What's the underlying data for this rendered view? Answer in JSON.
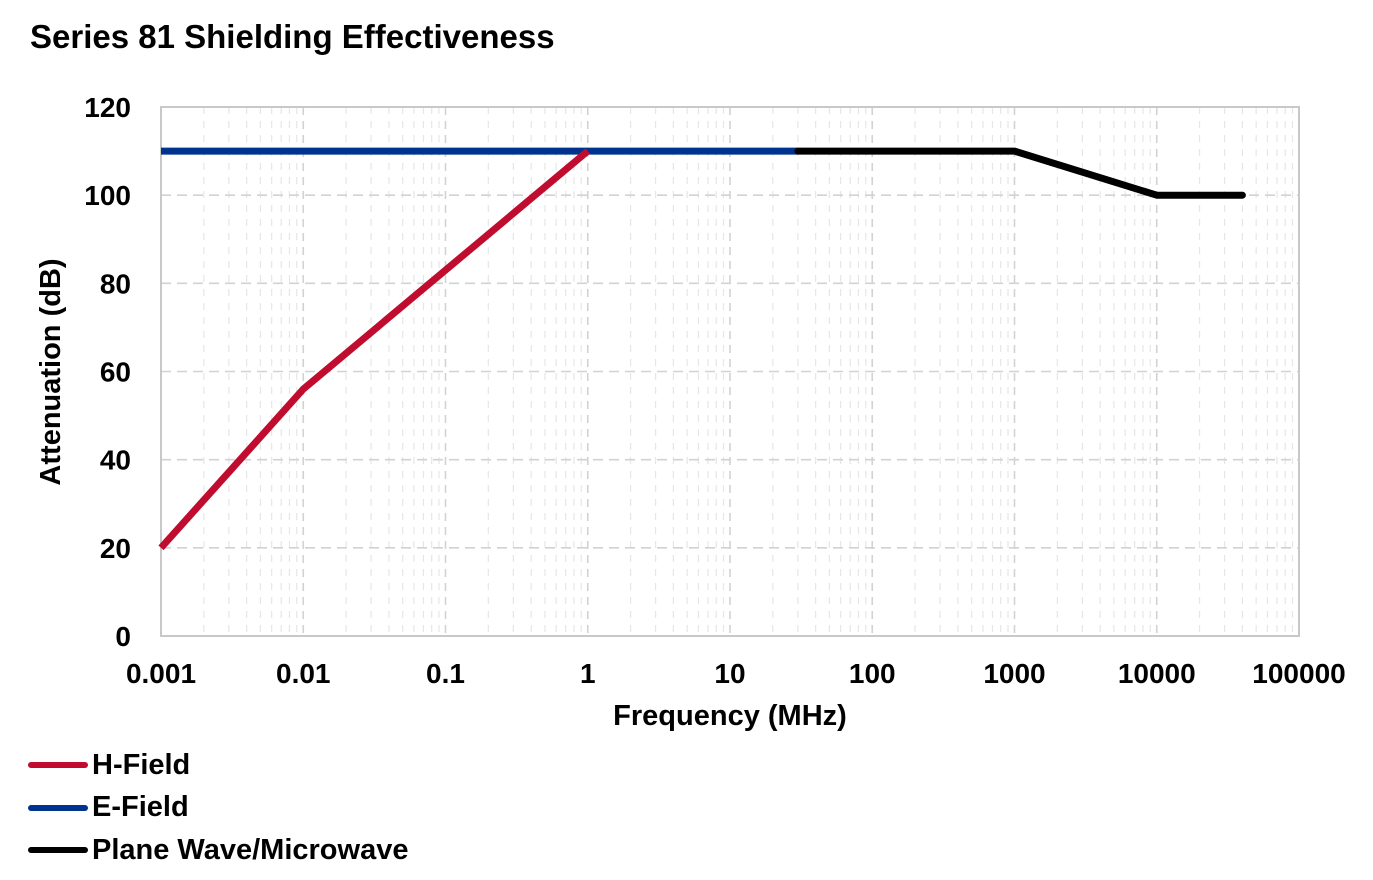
{
  "chart_data": {
    "type": "line",
    "title": "Series 81 Shielding Effectiveness",
    "xlabel": "Frequency (MHz)",
    "ylabel": "Attenuation (dB)",
    "xscale": "log",
    "xlim": [
      0.001,
      100000
    ],
    "ylim": [
      0,
      120
    ],
    "x_ticks": [
      "0.001",
      "0.01",
      "0.1",
      "1",
      "10",
      "100",
      "1000",
      "10000",
      "100000"
    ],
    "x_tick_values": [
      0.001,
      0.01,
      0.1,
      1,
      10,
      100,
      1000,
      10000,
      100000
    ],
    "y_ticks": [
      "0",
      "20",
      "40",
      "60",
      "80",
      "100",
      "120"
    ],
    "y_tick_values": [
      0,
      20,
      40,
      60,
      80,
      100,
      120
    ],
    "grid": true,
    "legend_position": "bottom-left",
    "series": [
      {
        "name": "H-Field",
        "color": "#C00C2E",
        "points": [
          [
            0.001,
            20
          ],
          [
            0.01,
            56
          ],
          [
            1,
            110
          ]
        ]
      },
      {
        "name": "E-Field",
        "color": "#00338D",
        "points": [
          [
            0.001,
            110
          ],
          [
            30,
            110
          ]
        ]
      },
      {
        "name": "Plane Wave/Microwave",
        "color": "#000000",
        "points": [
          [
            30,
            110
          ],
          [
            1000,
            110
          ],
          [
            10000,
            100
          ],
          [
            40000,
            100
          ]
        ]
      }
    ]
  }
}
